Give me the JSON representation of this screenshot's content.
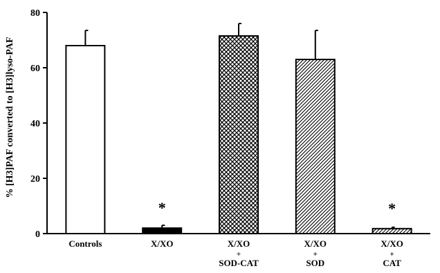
{
  "chart_data": {
    "type": "bar",
    "ylabel": "% [H3]PAF converted to [H3]lyso-PAF",
    "xlabel": "",
    "ylim": [
      0,
      80
    ],
    "yticks": [
      0,
      20,
      40,
      60,
      80
    ],
    "grid": false,
    "legend": "none",
    "categories": [
      {
        "lines": [
          "Controls"
        ]
      },
      {
        "lines": [
          "X/XO"
        ]
      },
      {
        "lines": [
          "X/XO",
          "+",
          "SOD-CAT"
        ]
      },
      {
        "lines": [
          "X/XO",
          "+",
          "SOD"
        ]
      },
      {
        "lines": [
          "X/XO",
          "+",
          "CAT"
        ]
      }
    ],
    "values": [
      68.0,
      2.0,
      71.5,
      63.0,
      1.8
    ],
    "error_upper": [
      5.5,
      1.0,
      4.5,
      10.5,
      0.5
    ],
    "annotations": [
      "",
      "*",
      "",
      "",
      "*"
    ],
    "fills": [
      "white",
      "black",
      "crosshatch",
      "diagonal",
      "diagonal"
    ],
    "colors": {
      "ink": "#000000",
      "background": "#ffffff"
    }
  }
}
